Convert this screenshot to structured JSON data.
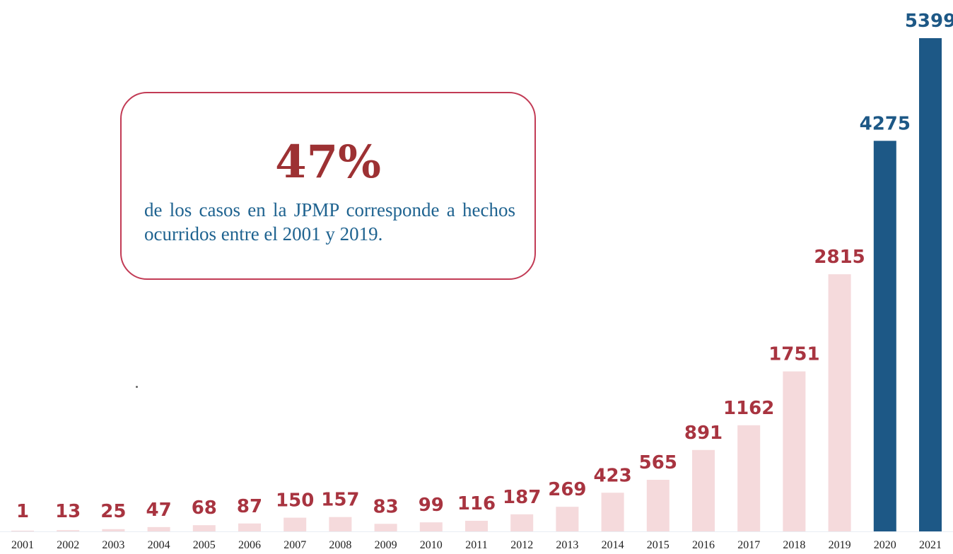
{
  "callout": {
    "percent": "47%",
    "text": "de los casos en la JPMP corresponde a hechos ocurridos entre el 2001 y 2019."
  },
  "colors": {
    "faded_bar": "#f3d3d6",
    "faded_label": "#a83440",
    "highlight_bar": "#1d5886",
    "highlight_label": "#1d5886",
    "callout_border": "#c23b55",
    "callout_percent": "#9d3133",
    "callout_text": "#1f6390"
  },
  "chart_data": {
    "type": "bar",
    "categories": [
      "2001",
      "2002",
      "2003",
      "2004",
      "2005",
      "2006",
      "2007",
      "2008",
      "2009",
      "2010",
      "2011",
      "2012",
      "2013",
      "2014",
      "2015",
      "2016",
      "2017",
      "2018",
      "2019",
      "2020",
      "2021"
    ],
    "values": [
      1,
      13,
      25,
      47,
      68,
      87,
      150,
      157,
      83,
      99,
      116,
      187,
      269,
      423,
      565,
      891,
      1162,
      1751,
      2815,
      4275,
      5399
    ],
    "highlighted_categories": [
      "2020",
      "2021"
    ],
    "title": "",
    "xlabel": "",
    "ylabel": "",
    "ylim": [
      0,
      5399
    ],
    "grid": false,
    "legend": "none",
    "data_labels": true
  }
}
